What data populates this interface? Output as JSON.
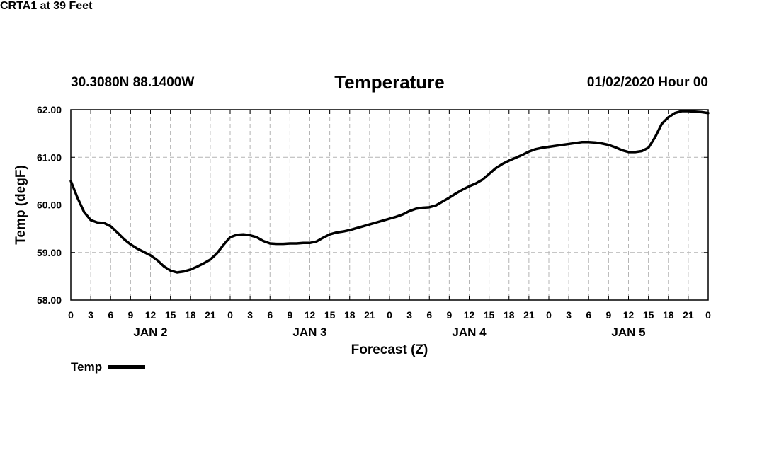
{
  "header": {
    "station": "CRTA1 at 39 Feet",
    "latlon": "30.3080N 88.1400W",
    "title": "Temperature",
    "datetime": "01/02/2020 Hour 00"
  },
  "legend": {
    "label": "Temp"
  },
  "colors": {
    "line": "#000000",
    "grid": "#b4b4b4",
    "background": "#ffffff"
  },
  "chart_data": {
    "type": "line",
    "title": "Temperature",
    "xlabel": "Forecast (Z)",
    "ylabel": "Temp (degF)",
    "xlim": [
      0,
      96
    ],
    "ylim": [
      58.0,
      62.0
    ],
    "grid": true,
    "legend_position": "bottom-left",
    "y_ticks": [
      {
        "value": 58,
        "label": "58.00"
      },
      {
        "value": 59,
        "label": "59.00"
      },
      {
        "value": 60,
        "label": "60.00"
      },
      {
        "value": 61,
        "label": "61.00"
      },
      {
        "value": 62,
        "label": "62.00"
      }
    ],
    "x_ticks": [
      {
        "value": 0,
        "label": "0"
      },
      {
        "value": 3,
        "label": "3"
      },
      {
        "value": 6,
        "label": "6"
      },
      {
        "value": 9,
        "label": "9"
      },
      {
        "value": 12,
        "label": "12"
      },
      {
        "value": 15,
        "label": "15"
      },
      {
        "value": 18,
        "label": "18"
      },
      {
        "value": 21,
        "label": "21"
      },
      {
        "value": 24,
        "label": "0"
      },
      {
        "value": 27,
        "label": "3"
      },
      {
        "value": 30,
        "label": "6"
      },
      {
        "value": 33,
        "label": "9"
      },
      {
        "value": 36,
        "label": "12"
      },
      {
        "value": 39,
        "label": "15"
      },
      {
        "value": 42,
        "label": "18"
      },
      {
        "value": 45,
        "label": "21"
      },
      {
        "value": 48,
        "label": "0"
      },
      {
        "value": 51,
        "label": "3"
      },
      {
        "value": 54,
        "label": "6"
      },
      {
        "value": 57,
        "label": "9"
      },
      {
        "value": 60,
        "label": "12"
      },
      {
        "value": 63,
        "label": "15"
      },
      {
        "value": 66,
        "label": "18"
      },
      {
        "value": 69,
        "label": "21"
      },
      {
        "value": 72,
        "label": "0"
      },
      {
        "value": 75,
        "label": "3"
      },
      {
        "value": 78,
        "label": "6"
      },
      {
        "value": 81,
        "label": "9"
      },
      {
        "value": 84,
        "label": "12"
      },
      {
        "value": 87,
        "label": "15"
      },
      {
        "value": 90,
        "label": "18"
      },
      {
        "value": 93,
        "label": "21"
      },
      {
        "value": 96,
        "label": "0"
      }
    ],
    "day_labels": [
      {
        "value": 12,
        "label": "JAN 2"
      },
      {
        "value": 36,
        "label": "JAN 3"
      },
      {
        "value": 60,
        "label": "JAN 4"
      },
      {
        "value": 84,
        "label": "JAN 5"
      }
    ],
    "series": [
      {
        "name": "Temp",
        "x": [
          0,
          1,
          2,
          3,
          4,
          5,
          6,
          7,
          8,
          9,
          10,
          11,
          12,
          13,
          14,
          15,
          16,
          17,
          18,
          19,
          20,
          21,
          22,
          23,
          24,
          25,
          26,
          27,
          28,
          29,
          30,
          31,
          32,
          33,
          34,
          35,
          36,
          37,
          38,
          39,
          40,
          41,
          42,
          43,
          44,
          45,
          46,
          47,
          48,
          49,
          50,
          51,
          52,
          53,
          54,
          55,
          56,
          57,
          58,
          59,
          60,
          61,
          62,
          63,
          64,
          65,
          66,
          67,
          68,
          69,
          70,
          71,
          72,
          73,
          74,
          75,
          76,
          77,
          78,
          79,
          80,
          81,
          82,
          83,
          84,
          85,
          86,
          87,
          88,
          89,
          90,
          91,
          92,
          93,
          94,
          95,
          96
        ],
        "values": [
          60.5,
          60.15,
          59.85,
          59.68,
          59.63,
          59.62,
          59.55,
          59.42,
          59.28,
          59.17,
          59.08,
          59.01,
          58.94,
          58.84,
          58.71,
          58.62,
          58.58,
          58.6,
          58.64,
          58.7,
          58.77,
          58.85,
          58.98,
          59.16,
          59.32,
          59.37,
          59.38,
          59.36,
          59.32,
          59.24,
          59.19,
          59.18,
          59.18,
          59.19,
          59.19,
          59.2,
          59.2,
          59.23,
          59.31,
          59.38,
          59.42,
          59.44,
          59.47,
          59.51,
          59.55,
          59.59,
          59.63,
          59.67,
          59.71,
          59.75,
          59.8,
          59.87,
          59.92,
          59.94,
          59.95,
          59.99,
          60.07,
          60.15,
          60.24,
          60.32,
          60.39,
          60.45,
          60.53,
          60.65,
          60.77,
          60.86,
          60.93,
          60.99,
          61.05,
          61.12,
          61.17,
          61.2,
          61.22,
          61.24,
          61.26,
          61.28,
          61.3,
          61.32,
          61.32,
          61.31,
          61.29,
          61.26,
          61.21,
          61.15,
          61.11,
          61.11,
          61.13,
          61.2,
          61.42,
          61.7,
          61.84,
          61.93,
          61.97,
          61.97,
          61.96,
          61.95,
          61.93
        ]
      }
    ]
  }
}
